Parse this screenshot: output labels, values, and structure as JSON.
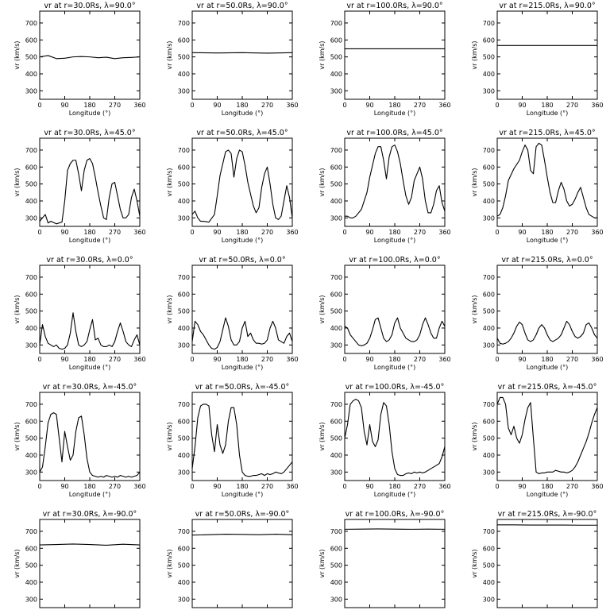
{
  "chart_data": {
    "type": "line",
    "layout": "5x4 grid of line plots",
    "xlabel": "Longitude (°)",
    "ylabel": "vr (km/s)",
    "xlim": [
      0,
      360
    ],
    "ylim": [
      250,
      770
    ],
    "xticks": [
      0,
      90,
      180,
      270,
      360
    ],
    "yticks": [
      300,
      400,
      500,
      600,
      700
    ],
    "line_color": "#000000",
    "panels": [
      {
        "title": "vr at r=30.0Rs, λ=90.0°",
        "x": [
          0,
          30,
          60,
          90,
          120,
          150,
          180,
          210,
          240,
          270,
          300,
          330,
          360
        ],
        "y": [
          500,
          508,
          490,
          492,
          500,
          502,
          500,
          495,
          498,
          490,
          495,
          497,
          500
        ]
      },
      {
        "title": "vr at r=50.0Rs, λ=90.0°",
        "x": [
          0,
          90,
          180,
          270,
          360
        ],
        "y": [
          525,
          523,
          525,
          522,
          525
        ]
      },
      {
        "title": "vr at r=100.0Rs, λ=90.0°",
        "x": [
          0,
          180,
          360
        ],
        "y": [
          548,
          548,
          548
        ]
      },
      {
        "title": "vr at r=215.0Rs, λ=90.0°",
        "x": [
          0,
          180,
          360
        ],
        "y": [
          567,
          567,
          567
        ]
      },
      {
        "title": "vr at r=30.0Rs, λ=45.0°",
        "x": [
          0,
          10,
          20,
          30,
          40,
          60,
          80,
          90,
          100,
          110,
          120,
          130,
          140,
          150,
          160,
          170,
          180,
          190,
          200,
          210,
          220,
          230,
          240,
          250,
          260,
          270,
          280,
          290,
          300,
          310,
          320,
          330,
          340,
          350,
          360
        ],
        "y": [
          280,
          300,
          320,
          270,
          280,
          265,
          275,
          400,
          580,
          620,
          640,
          640,
          560,
          460,
          580,
          640,
          650,
          620,
          540,
          450,
          370,
          300,
          290,
          420,
          500,
          510,
          430,
          350,
          300,
          300,
          320,
          420,
          470,
          400,
          310
        ]
      },
      {
        "title": "vr at r=50.0Rs, λ=45.0°",
        "x": [
          0,
          10,
          20,
          30,
          40,
          60,
          80,
          90,
          100,
          110,
          120,
          130,
          140,
          150,
          160,
          170,
          180,
          190,
          200,
          210,
          220,
          230,
          240,
          250,
          260,
          270,
          280,
          290,
          300,
          310,
          320,
          330,
          340,
          350,
          360
        ],
        "y": [
          320,
          340,
          300,
          280,
          280,
          275,
          320,
          430,
          550,
          620,
          690,
          700,
          680,
          540,
          650,
          700,
          690,
          610,
          510,
          440,
          370,
          330,
          360,
          480,
          560,
          600,
          500,
          380,
          300,
          290,
          310,
          400,
          490,
          420,
          300
        ]
      },
      {
        "title": "vr at r=100.0Rs, λ=45.0°",
        "x": [
          0,
          10,
          20,
          30,
          40,
          60,
          80,
          90,
          100,
          110,
          120,
          130,
          140,
          150,
          160,
          170,
          180,
          190,
          200,
          210,
          220,
          230,
          240,
          250,
          260,
          270,
          280,
          290,
          300,
          310,
          320,
          330,
          340,
          350,
          360
        ],
        "y": [
          310,
          310,
          300,
          300,
          310,
          350,
          450,
          540,
          610,
          680,
          720,
          720,
          640,
          530,
          660,
          720,
          730,
          690,
          620,
          520,
          430,
          380,
          420,
          520,
          560,
          600,
          530,
          400,
          330,
          330,
          380,
          460,
          490,
          390,
          340
        ]
      },
      {
        "title": "vr at r=215.0Rs, λ=45.0°",
        "x": [
          0,
          10,
          20,
          30,
          40,
          60,
          80,
          90,
          100,
          110,
          120,
          130,
          140,
          150,
          160,
          170,
          180,
          190,
          200,
          210,
          220,
          230,
          240,
          250,
          260,
          270,
          280,
          290,
          300,
          310,
          320,
          330,
          340,
          350,
          360
        ],
        "y": [
          310,
          320,
          360,
          430,
          520,
          590,
          640,
          690,
          730,
          700,
          580,
          560,
          720,
          740,
          730,
          640,
          540,
          450,
          390,
          390,
          460,
          510,
          470,
          400,
          370,
          380,
          410,
          450,
          480,
          420,
          360,
          320,
          310,
          300,
          300
        ]
      },
      {
        "title": "vr at r=30.0Rs, λ=0.0°",
        "x": [
          0,
          10,
          20,
          30,
          40,
          50,
          60,
          70,
          80,
          90,
          100,
          110,
          120,
          130,
          140,
          150,
          160,
          170,
          180,
          190,
          200,
          210,
          220,
          230,
          240,
          250,
          260,
          270,
          280,
          290,
          300,
          310,
          320,
          330,
          340,
          350,
          360
        ],
        "y": [
          300,
          420,
          350,
          310,
          300,
          290,
          300,
          280,
          275,
          280,
          300,
          370,
          490,
          380,
          300,
          290,
          300,
          320,
          390,
          450,
          330,
          340,
          300,
          290,
          290,
          300,
          290,
          320,
          380,
          430,
          380,
          320,
          300,
          290,
          330,
          360,
          300
        ]
      },
      {
        "title": "vr at r=50.0Rs, λ=0.0°",
        "x": [
          0,
          10,
          20,
          30,
          40,
          50,
          60,
          70,
          80,
          90,
          100,
          110,
          120,
          130,
          140,
          150,
          160,
          170,
          180,
          190,
          200,
          210,
          220,
          230,
          240,
          250,
          260,
          270,
          280,
          290,
          300,
          310,
          320,
          330,
          340,
          350,
          360
        ],
        "y": [
          320,
          440,
          420,
          380,
          360,
          330,
          300,
          280,
          275,
          285,
          320,
          390,
          460,
          410,
          330,
          300,
          300,
          320,
          400,
          440,
          350,
          370,
          330,
          310,
          310,
          305,
          310,
          330,
          400,
          440,
          400,
          330,
          320,
          310,
          350,
          370,
          320
        ]
      },
      {
        "title": "vr at r=100.0Rs, λ=0.0°",
        "x": [
          0,
          10,
          20,
          30,
          40,
          50,
          60,
          70,
          80,
          90,
          100,
          110,
          120,
          130,
          140,
          150,
          160,
          170,
          180,
          190,
          200,
          210,
          220,
          230,
          240,
          250,
          260,
          270,
          280,
          290,
          300,
          310,
          320,
          330,
          340,
          350,
          360
        ],
        "y": [
          410,
          400,
          360,
          340,
          320,
          300,
          295,
          300,
          310,
          340,
          390,
          450,
          460,
          400,
          340,
          320,
          330,
          360,
          430,
          460,
          400,
          370,
          340,
          330,
          320,
          320,
          330,
          360,
          420,
          460,
          420,
          370,
          340,
          340,
          400,
          440,
          410
        ]
      },
      {
        "title": "vr at r=215.0Rs, λ=0.0°",
        "x": [
          0,
          10,
          20,
          30,
          40,
          50,
          60,
          70,
          80,
          90,
          100,
          110,
          120,
          130,
          140,
          150,
          160,
          170,
          180,
          190,
          200,
          210,
          220,
          230,
          240,
          250,
          260,
          270,
          280,
          290,
          300,
          310,
          320,
          330,
          340,
          350,
          360
        ],
        "y": [
          340,
          310,
          305,
          310,
          320,
          340,
          370,
          410,
          435,
          420,
          370,
          330,
          320,
          330,
          360,
          400,
          420,
          400,
          360,
          330,
          320,
          330,
          340,
          360,
          400,
          440,
          420,
          380,
          350,
          340,
          350,
          370,
          420,
          430,
          400,
          360,
          340
        ]
      },
      {
        "title": "vr at r=30.0Rs, λ=-45.0°",
        "x": [
          0,
          10,
          20,
          30,
          40,
          50,
          60,
          70,
          80,
          90,
          100,
          110,
          120,
          130,
          140,
          150,
          160,
          170,
          180,
          190,
          200,
          210,
          220,
          230,
          240,
          250,
          260,
          270,
          280,
          290,
          300,
          310,
          320,
          330,
          340,
          350,
          360
        ],
        "y": [
          300,
          330,
          450,
          590,
          640,
          650,
          640,
          500,
          360,
          540,
          450,
          370,
          400,
          540,
          620,
          630,
          520,
          380,
          300,
          280,
          275,
          270,
          275,
          270,
          280,
          275,
          270,
          275,
          270,
          280,
          275,
          270,
          275,
          270,
          275,
          280,
          300
        ]
      },
      {
        "title": "vr at r=50.0Rs, λ=-45.0°",
        "x": [
          0,
          10,
          20,
          30,
          40,
          50,
          60,
          70,
          80,
          90,
          100,
          110,
          120,
          130,
          140,
          150,
          160,
          170,
          180,
          190,
          200,
          210,
          220,
          230,
          240,
          250,
          260,
          270,
          280,
          290,
          300,
          310,
          320,
          330,
          340,
          350,
          360
        ],
        "y": [
          320,
          450,
          620,
          690,
          700,
          700,
          690,
          520,
          420,
          580,
          460,
          410,
          460,
          600,
          680,
          680,
          580,
          400,
          300,
          280,
          275,
          275,
          280,
          280,
          285,
          290,
          280,
          290,
          285,
          290,
          300,
          295,
          290,
          300,
          320,
          340,
          360
        ]
      },
      {
        "title": "vr at r=100.0Rs, λ=-45.0°",
        "x": [
          0,
          10,
          20,
          30,
          40,
          50,
          60,
          70,
          80,
          90,
          100,
          110,
          120,
          130,
          140,
          150,
          160,
          170,
          180,
          190,
          200,
          210,
          220,
          230,
          240,
          250,
          260,
          270,
          280,
          290,
          300,
          310,
          320,
          330,
          340,
          350,
          360
        ],
        "y": [
          500,
          580,
          700,
          720,
          730,
          720,
          680,
          540,
          460,
          580,
          480,
          450,
          490,
          640,
          710,
          690,
          580,
          420,
          320,
          285,
          280,
          280,
          290,
          295,
          290,
          300,
          295,
          300,
          295,
          300,
          310,
          320,
          330,
          340,
          350,
          390,
          450
        ]
      },
      {
        "title": "vr at r=215.0Rs, λ=-45.0°",
        "x": [
          0,
          10,
          20,
          30,
          40,
          50,
          60,
          70,
          80,
          90,
          100,
          110,
          120,
          130,
          140,
          150,
          160,
          170,
          180,
          190,
          200,
          210,
          220,
          230,
          240,
          250,
          260,
          270,
          280,
          290,
          300,
          310,
          320,
          330,
          340,
          350,
          360
        ],
        "y": [
          700,
          740,
          740,
          700,
          560,
          520,
          570,
          500,
          470,
          520,
          610,
          680,
          710,
          500,
          300,
          290,
          295,
          295,
          300,
          300,
          300,
          310,
          305,
          300,
          300,
          295,
          300,
          310,
          330,
          360,
          400,
          440,
          480,
          530,
          590,
          640,
          680
        ]
      },
      {
        "title": "vr at r=30.0Rs, λ=-90.0°",
        "x": [
          0,
          60,
          120,
          180,
          240,
          300,
          360
        ],
        "y": [
          620,
          622,
          625,
          622,
          618,
          624,
          620
        ]
      },
      {
        "title": "vr at r=50.0Rs, λ=-90.0°",
        "x": [
          0,
          60,
          120,
          180,
          240,
          300,
          360
        ],
        "y": [
          678,
          680,
          683,
          682,
          680,
          683,
          680
        ]
      },
      {
        "title": "vr at r=100.0Rs, λ=-90.0°",
        "x": [
          0,
          60,
          120,
          180,
          240,
          300,
          360
        ],
        "y": [
          712,
          713,
          714,
          713,
          712,
          713,
          712
        ]
      },
      {
        "title": "vr at r=215.0Rs, λ=-90.0°",
        "x": [
          0,
          60,
          120,
          180,
          240,
          300,
          360
        ],
        "y": [
          738,
          738,
          737,
          737,
          737,
          736,
          736
        ]
      }
    ]
  }
}
